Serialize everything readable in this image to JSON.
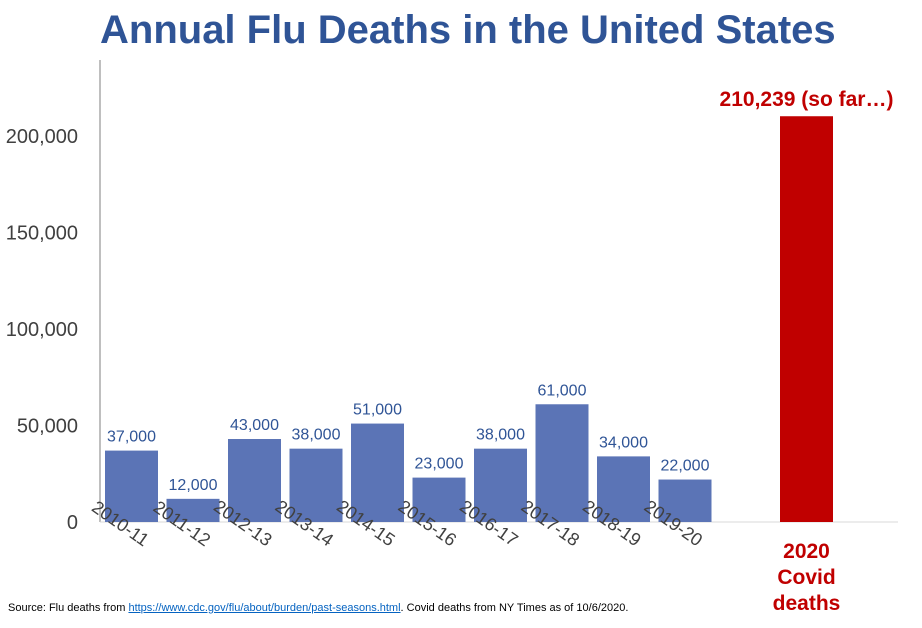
{
  "colors": {
    "title": "#2f5496",
    "flu_bar": "#5b74b6",
    "flu_label": "#2f5496",
    "covid": "#c00000",
    "axis_text": "#404040",
    "axis_line": "#7f7f7f"
  },
  "chart_data": {
    "type": "bar",
    "title": "Annual Flu Deaths in the United States",
    "categories": [
      "2010-11",
      "2011-12",
      "2012-13",
      "2013-14",
      "2014-15",
      "2015-16",
      "2016-17",
      "2017-18",
      "2018-19",
      "2019-20"
    ],
    "values": [
      37000,
      12000,
      43000,
      38000,
      51000,
      23000,
      38000,
      61000,
      34000,
      22000
    ],
    "value_labels": [
      "37,000",
      "12,000",
      "43,000",
      "38,000",
      "51,000",
      "23,000",
      "38,000",
      "61,000",
      "34,000",
      "22,000"
    ],
    "extra_bar": {
      "category_lines": [
        "2020",
        "Covid",
        "deaths"
      ],
      "value": 210239,
      "label": "210,239 (so far…)"
    },
    "yticks": [
      0,
      50000,
      100000,
      150000,
      200000
    ],
    "ytick_labels": [
      "0",
      "50,000",
      "100,000",
      "150,000",
      "200,000"
    ],
    "ylim": [
      0,
      240000
    ],
    "grid": false,
    "legend": "none"
  },
  "source": {
    "prefix": "Source: Flu deaths from ",
    "link": "https://www.cdc.gov/flu/about/burden/past-seasons.html",
    "suffix": ". Covid deaths from NY Times as of 10/6/2020."
  }
}
